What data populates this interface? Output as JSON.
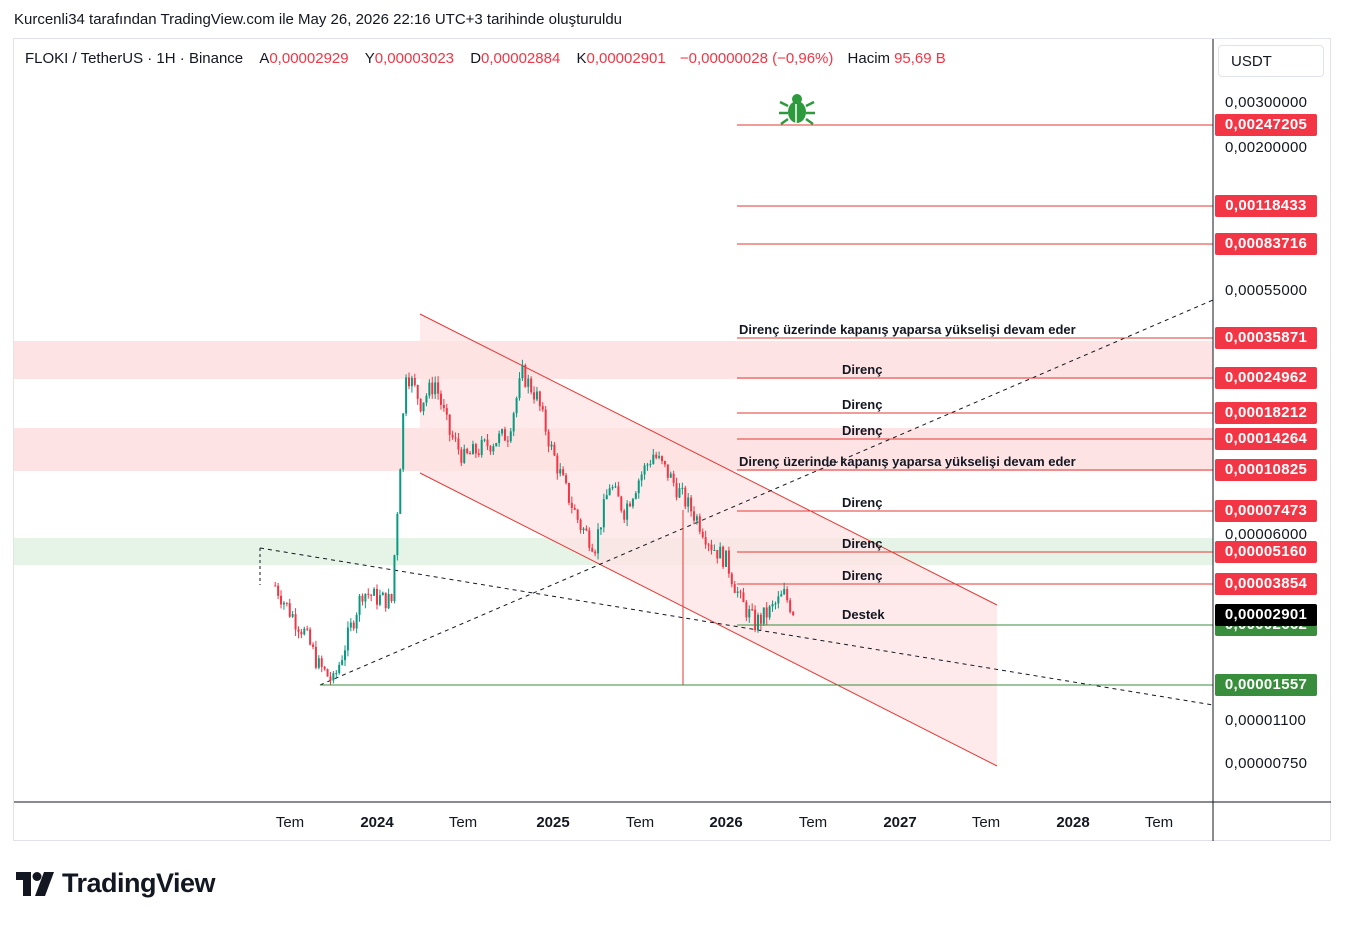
{
  "caption": "Kurcenli34 tarafından TradingView.com ile May 26, 2026 22:16 UTC+3 tarihinde oluşturuldu",
  "header": {
    "symbol": "FLOKI / TetherUS · 1H · Binance",
    "open_label": "A",
    "open_value": "0,00002929",
    "high_label": "Y",
    "high_value": "0,00003023",
    "low_label": "D",
    "low_value": "0,00002884",
    "close_label": "K",
    "close_value": "0,00002901",
    "change": "−0,00000028 (−0,96%)",
    "volume_label": "Hacim",
    "volume_value": "95,69 B"
  },
  "currency": "USDT",
  "brand": "TradingView",
  "colors": {
    "bull": "#089981",
    "bear": "#f23645",
    "resistance_line": "#e53935",
    "support_line": "#388e3c",
    "zone_red": "#fde3e3",
    "zone_green": "#e5f4e6",
    "current_tag": "#000000",
    "support_tag": "#388e3c",
    "resistance_tag": "#f23645"
  },
  "icons": {
    "marker": "bug-icon"
  },
  "chart_data": {
    "type": "candlestick",
    "scale": "log",
    "title": "FLOKI / TetherUS · 1H · Binance",
    "x_tick_labels": [
      "Tem",
      "2024",
      "Tem",
      "2025",
      "Tem",
      "2026",
      "Tem",
      "2027",
      "Tem",
      "2028",
      "Tem"
    ],
    "y_tick_labels": [
      "0,00300000",
      "0,00200000",
      "0,00055000",
      "0,00006000",
      "0,00001100",
      "0,00000750"
    ],
    "current_price": "0,00002901",
    "resistance_levels": [
      {
        "value": "0,00247205",
        "label": ""
      },
      {
        "value": "0,00118433",
        "label": ""
      },
      {
        "value": "0,00083716",
        "label": ""
      },
      {
        "value": "0,00035871",
        "label": "Direnç üzerinde kapanış yaparsa yükselişi devam eder"
      },
      {
        "value": "0,00024962",
        "label": "Direnç"
      },
      {
        "value": "0,00018212",
        "label": "Direnç"
      },
      {
        "value": "0,00014264",
        "label": "Direnç"
      },
      {
        "value": "0,00010825",
        "label": "Direnç üzerinde kapanış yaparsa yükselişi devam eder"
      },
      {
        "value": "0,00007473",
        "label": "Direnç"
      },
      {
        "value": "0,00005160",
        "label": "Direnç"
      },
      {
        "value": "0,00003854",
        "label": "Direnç"
      }
    ],
    "support_levels": [
      {
        "value": "0,00002662",
        "label": "Destek"
      },
      {
        "value": "0,00001557",
        "label": ""
      }
    ],
    "price_path": [
      [
        "2023-06",
        3.8e-05
      ],
      [
        "2023-07",
        3e-05
      ],
      [
        "2023-08",
        2.5e-05
      ],
      [
        "2023-09",
        1.85e-05
      ],
      [
        "2023-10",
        1.6e-05
      ],
      [
        "2023-11",
        2.4e-05
      ],
      [
        "2023-12",
        3.6e-05
      ],
      [
        "2024-01",
        3.4e-05
      ],
      [
        "2024-02",
        3.3e-05
      ],
      [
        "2024-03",
        0.00027
      ],
      [
        "2024-04",
        0.0002
      ],
      [
        "2024-05",
        0.00024
      ],
      [
        "2024-06",
        0.00015
      ],
      [
        "2024-07",
        0.00012
      ],
      [
        "2024-08",
        0.00013
      ],
      [
        "2024-09",
        0.00014
      ],
      [
        "2024-10",
        0.00015
      ],
      [
        "2024-11",
        0.00026
      ],
      [
        "2024-12",
        0.00021
      ],
      [
        "2025-01",
        0.00013
      ],
      [
        "2025-02",
        9e-05
      ],
      [
        "2025-03",
        6.5e-05
      ],
      [
        "2025-04",
        5.5e-05
      ],
      [
        "2025-05",
        9.5e-05
      ],
      [
        "2025-06",
        7.5e-05
      ],
      [
        "2025-07",
        0.0001
      ],
      [
        "2025-08",
        0.000125
      ],
      [
        "2025-09",
        0.000105
      ],
      [
        "2025-10",
        8.5e-05
      ],
      [
        "2025-11",
        7e-05
      ],
      [
        "2025-12",
        5.5e-05
      ],
      [
        "2026-01",
        4.8e-05
      ],
      [
        "2026-02",
        3.3e-05
      ],
      [
        "2026-03",
        2.7e-05
      ],
      [
        "2026-04",
        3e-05
      ],
      [
        "2026-05",
        3.5e-05
      ],
      [
        "2026-05-26",
        2.9e-05
      ]
    ]
  }
}
